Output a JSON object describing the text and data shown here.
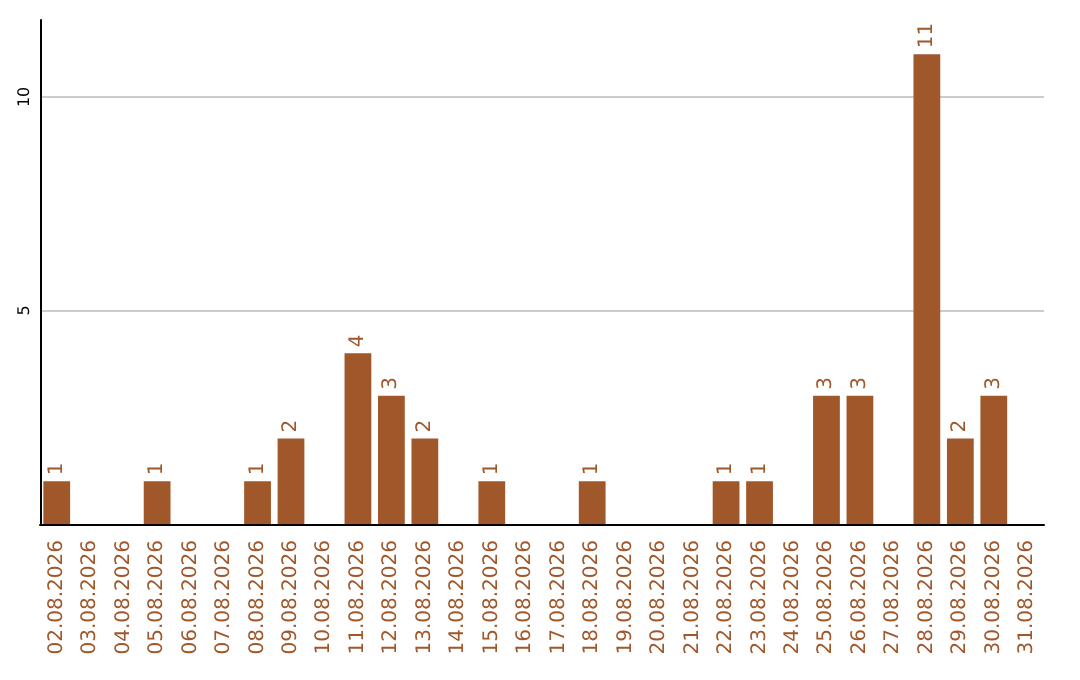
{
  "chart_data": {
    "type": "bar",
    "categories": [
      "02.08.2026",
      "03.08.2026",
      "04.08.2026",
      "05.08.2026",
      "06.08.2026",
      "07.08.2026",
      "08.08.2026",
      "09.08.2026",
      "10.08.2026",
      "11.08.2026",
      "12.08.2026",
      "13.08.2026",
      "14.08.2026",
      "15.08.2026",
      "16.08.2026",
      "17.08.2026",
      "18.08.2026",
      "19.08.2026",
      "20.08.2026",
      "21.08.2026",
      "22.08.2026",
      "23.08.2026",
      "24.08.2026",
      "25.08.2026",
      "26.08.2026",
      "27.08.2026",
      "28.08.2026",
      "29.08.2026",
      "30.08.2026",
      "31.08.2026"
    ],
    "values": [
      1,
      0,
      0,
      1,
      0,
      0,
      1,
      2,
      0,
      4,
      3,
      2,
      0,
      1,
      0,
      0,
      1,
      0,
      0,
      0,
      1,
      1,
      0,
      3,
      3,
      0,
      11,
      2,
      3,
      0
    ],
    "value_labels": [
      "1",
      null,
      null,
      "1",
      null,
      null,
      "1",
      "2",
      null,
      "4",
      "3",
      "2",
      null,
      "1",
      null,
      null,
      "1",
      null,
      null,
      null,
      "1",
      "1",
      null,
      "3",
      "3",
      null,
      "11",
      "2",
      "3",
      null
    ],
    "color": "#a0572a",
    "ylim": [
      0,
      11.8
    ],
    "yticks": [
      5,
      10
    ],
    "grid": "y"
  }
}
